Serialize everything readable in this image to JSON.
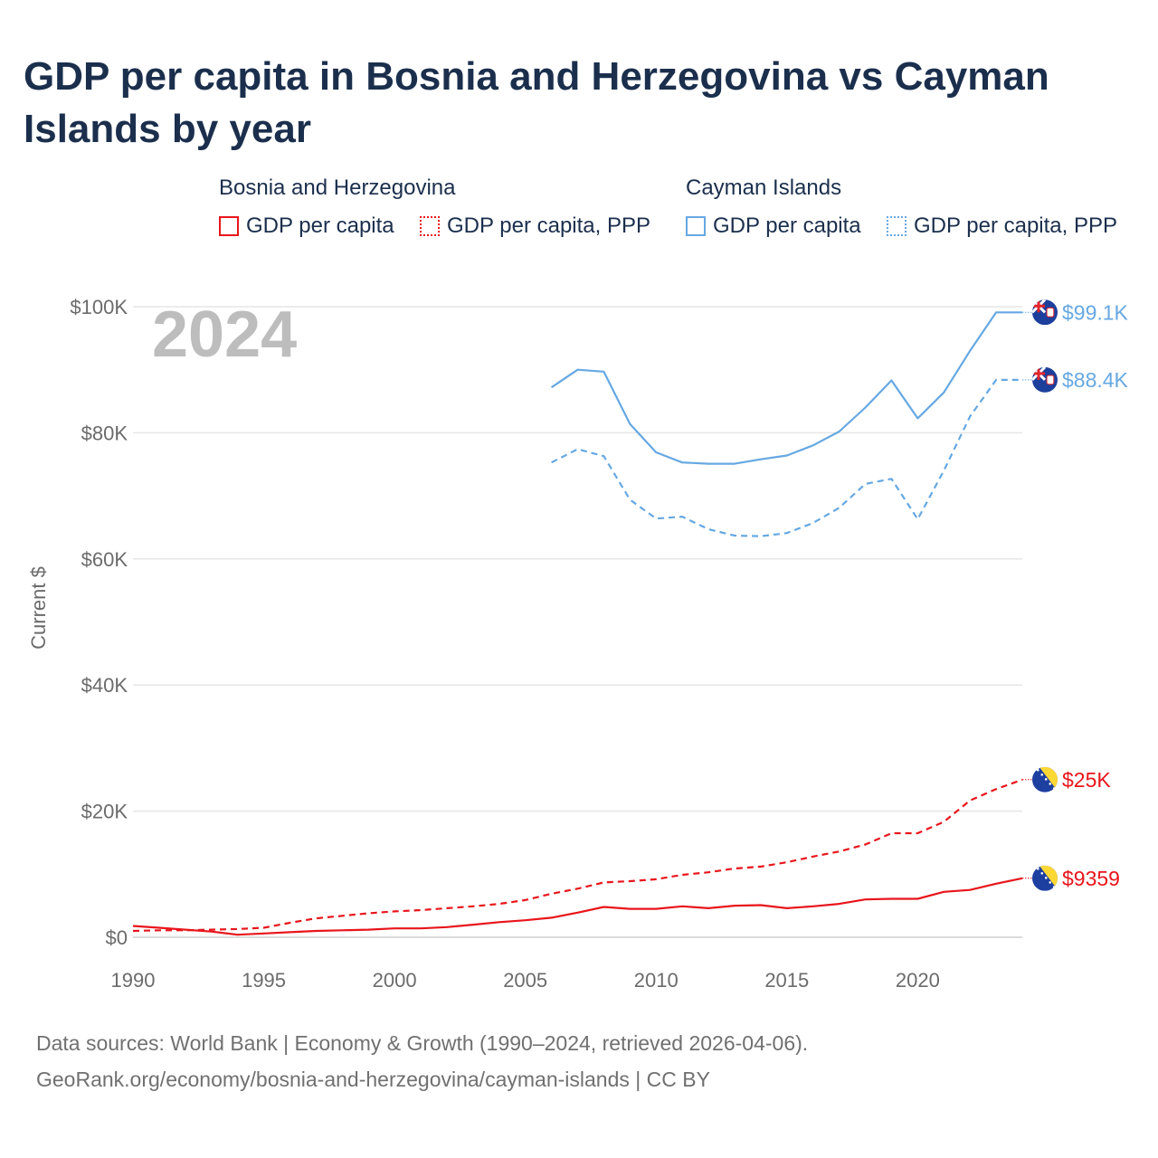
{
  "title": "GDP per capita in Bosnia and Herzegovina vs Cayman Islands by year",
  "legend": {
    "groups": [
      {
        "country": "Bosnia and Herzegovina",
        "items": [
          {
            "label": "GDP per capita",
            "style": "solid",
            "color": "#e8151b"
          },
          {
            "label": "GDP per capita, PPP",
            "style": "dotted",
            "color": "#e8151b"
          }
        ]
      },
      {
        "country": "Cayman Islands",
        "items": [
          {
            "label": "GDP per capita",
            "style": "solid",
            "color": "#66a8e2"
          },
          {
            "label": "GDP per capita, PPP",
            "style": "dotted",
            "color": "#66a8e2"
          }
        ]
      }
    ]
  },
  "footer": {
    "line1": "Data sources: World Bank | Economy & Growth (1990–2024, retrieved 2026-04-06).",
    "line2": "GeoRank.org/economy/bosnia-and-herzegovina/cayman-islands | CC BY"
  },
  "chart_data": {
    "type": "line",
    "year_label": "2024",
    "ylabel": "Current $",
    "xlim": [
      1990,
      2024
    ],
    "ylim": [
      0,
      100000
    ],
    "grid": true,
    "x_ticks": [
      1990,
      1995,
      2000,
      2005,
      2010,
      2015,
      2020
    ],
    "x_tick_labels": [
      "1990",
      "1995",
      "2000",
      "2005",
      "2010",
      "2015",
      "2020"
    ],
    "y_ticks": [
      0,
      20000,
      40000,
      60000,
      80000,
      100000
    ],
    "y_tick_labels": [
      "$0",
      "$20K",
      "$40K",
      "$60K",
      "$80K",
      "$100K"
    ],
    "series": [
      {
        "name": "Bosnia and Herzegovina — GDP per capita",
        "country": "Bosnia and Herzegovina",
        "flag": "bosnia-flag-icon",
        "color": "#e8151b",
        "dash": "solid",
        "end_label": "$9359",
        "x": [
          1990,
          1991,
          1992,
          1993,
          1994,
          1995,
          1996,
          1997,
          1998,
          1999,
          2000,
          2001,
          2002,
          2003,
          2004,
          2005,
          2006,
          2007,
          2008,
          2009,
          2010,
          2011,
          2012,
          2013,
          2014,
          2015,
          2016,
          2017,
          2018,
          2019,
          2020,
          2021,
          2022,
          2023,
          2024
        ],
        "values": [
          1800,
          1500,
          1200,
          900,
          400,
          600,
          800,
          1000,
          1100,
          1200,
          1400,
          1400,
          1600,
          2000,
          2400,
          2700,
          3100,
          3900,
          4800,
          4500,
          4500,
          4900,
          4600,
          5000,
          5100,
          4600,
          4900,
          5300,
          6000,
          6100,
          6100,
          7200,
          7500,
          8500,
          9359
        ]
      },
      {
        "name": "Bosnia and Herzegovina — GDP per capita, PPP",
        "country": "Bosnia and Herzegovina",
        "flag": "bosnia-flag-icon",
        "color": "#e8151b",
        "dash": "dashed",
        "end_label": "$25K",
        "x": [
          1990,
          1991,
          1992,
          1993,
          1994,
          1995,
          1996,
          1997,
          1998,
          1999,
          2000,
          2001,
          2002,
          2003,
          2004,
          2005,
          2006,
          2007,
          2008,
          2009,
          2010,
          2011,
          2012,
          2013,
          2014,
          2015,
          2016,
          2017,
          2018,
          2019,
          2020,
          2021,
          2022,
          2023,
          2024
        ],
        "values": [
          1000,
          1100,
          1100,
          1200,
          1300,
          1500,
          2300,
          3000,
          3400,
          3800,
          4100,
          4300,
          4600,
          4900,
          5300,
          5900,
          6900,
          7700,
          8700,
          8900,
          9200,
          9900,
          10300,
          10900,
          11200,
          11900,
          12800,
          13600,
          14700,
          16500,
          16500,
          18300,
          21700,
          23500,
          25000
        ]
      },
      {
        "name": "Cayman Islands — GDP per capita",
        "country": "Cayman Islands",
        "flag": "cayman-flag-icon",
        "color": "#66a8e2",
        "dash": "solid",
        "end_label": "$99.1K",
        "x": [
          2006,
          2007,
          2008,
          2009,
          2010,
          2011,
          2012,
          2013,
          2014,
          2015,
          2016,
          2017,
          2018,
          2019,
          2020,
          2021,
          2022,
          2023,
          2024
        ],
        "values": [
          87200,
          90000,
          89700,
          81400,
          76900,
          75300,
          75100,
          75100,
          75800,
          76400,
          78000,
          80200,
          84000,
          88300,
          82300,
          86400,
          93000,
          99100,
          99100
        ]
      },
      {
        "name": "Cayman Islands — GDP per capita, PPP",
        "country": "Cayman Islands",
        "flag": "cayman-flag-icon",
        "color": "#66a8e2",
        "dash": "dashed",
        "end_label": "$88.4K",
        "x": [
          2006,
          2007,
          2008,
          2009,
          2010,
          2011,
          2012,
          2013,
          2014,
          2015,
          2016,
          2017,
          2018,
          2019,
          2020,
          2021,
          2022,
          2023,
          2024
        ],
        "values": [
          75300,
          77400,
          76300,
          69400,
          66400,
          66700,
          64700,
          63700,
          63600,
          64100,
          65700,
          68100,
          71900,
          72700,
          66300,
          74000,
          82600,
          88400,
          88400
        ]
      }
    ]
  }
}
